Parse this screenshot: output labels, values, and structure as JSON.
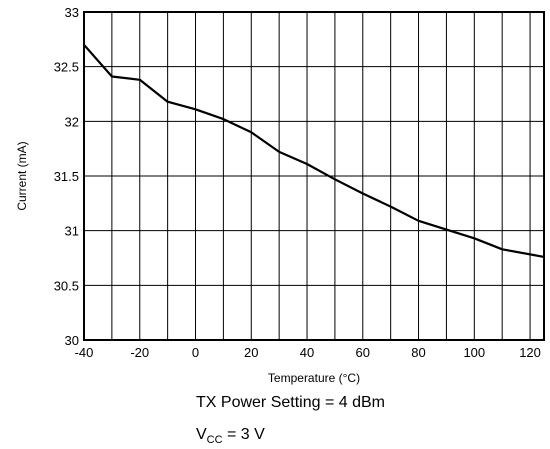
{
  "chart_data": {
    "type": "line",
    "xlabel": "Temperature (°C)",
    "ylabel": "Current (mA)",
    "xlim": [
      -40,
      125
    ],
    "ylim": [
      30,
      33
    ],
    "x_ticks": [
      -40,
      -20,
      0,
      20,
      40,
      60,
      80,
      100,
      120
    ],
    "y_ticks": [
      30,
      30.5,
      31,
      31.5,
      32,
      32.5,
      33
    ],
    "x_tick_labels": [
      "-40",
      "-20",
      "0",
      "20",
      "40",
      "60",
      "80",
      "100",
      "120"
    ],
    "y_tick_labels": [
      "30",
      "30.5",
      "31",
      "31.5",
      "32",
      "32.5",
      "33"
    ],
    "grid": true,
    "series": [
      {
        "x": [
          -40,
          -30,
          -20,
          -10,
          0,
          10,
          20,
          30,
          40,
          50,
          60,
          70,
          80,
          90,
          100,
          110,
          125
        ],
        "y": [
          32.7,
          32.41,
          32.38,
          32.18,
          32.11,
          32.02,
          31.9,
          31.72,
          31.61,
          31.47,
          31.34,
          31.22,
          31.09,
          31.01,
          30.93,
          30.83,
          30.76
        ]
      }
    ],
    "annotations": {
      "line1": "TX Power Setting = 4 dBm",
      "line2_prefix": "V",
      "line2_sub": "CC",
      "line2_suffix": " = 3 V"
    }
  },
  "style": {
    "line_color": "#000000",
    "grid_color": "#000000"
  }
}
